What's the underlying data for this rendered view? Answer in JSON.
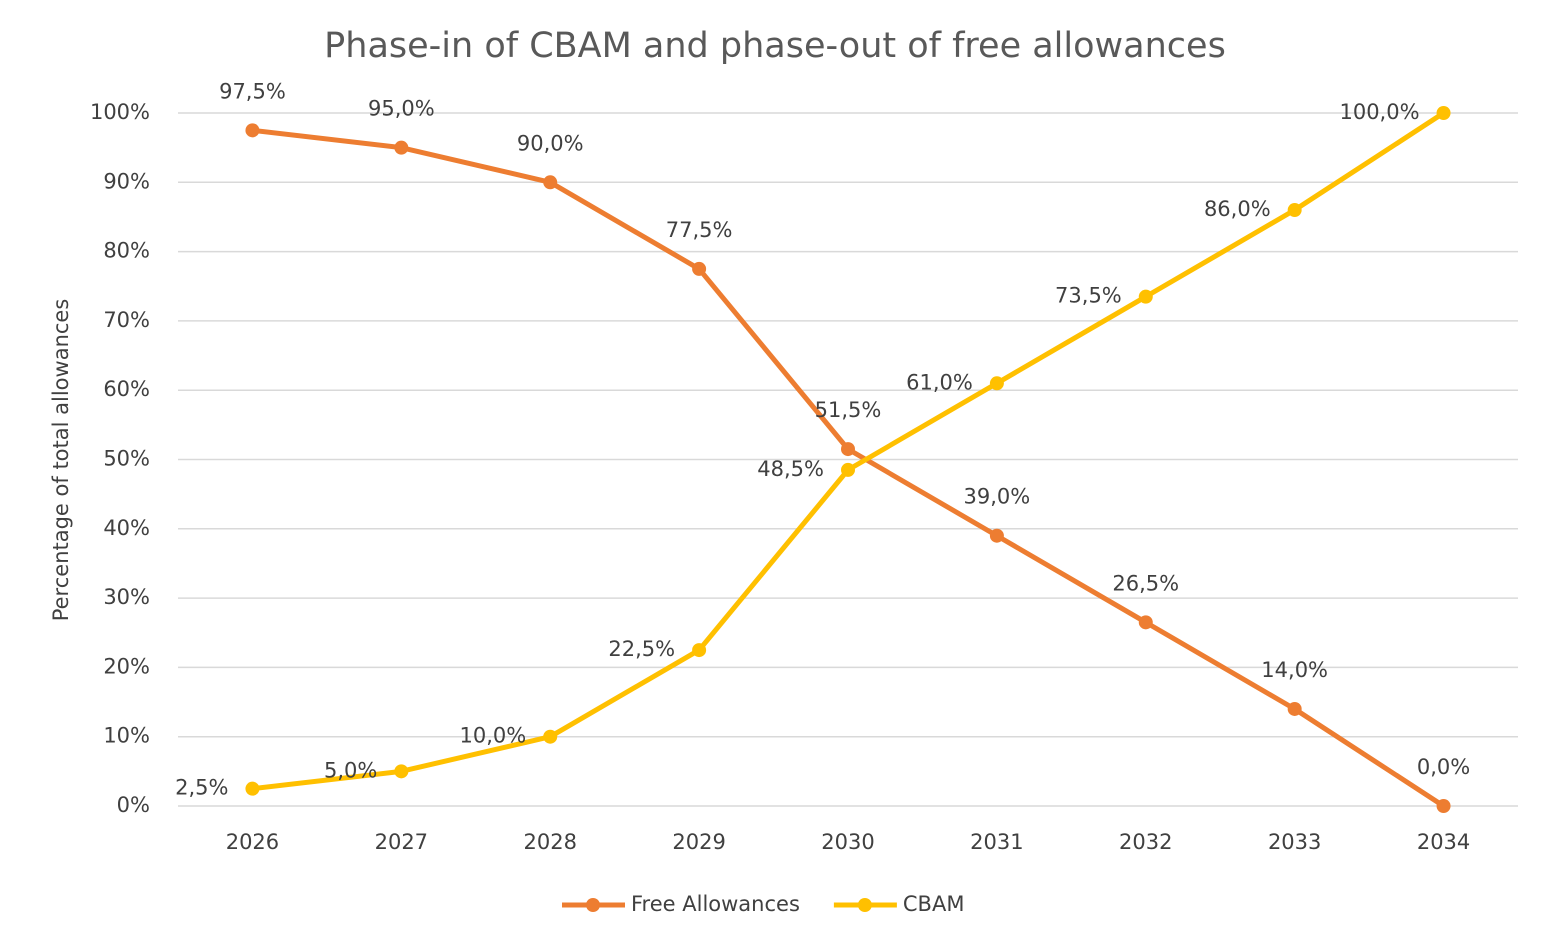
{
  "chart_data": {
    "type": "line",
    "title": "Phase-in of CBAM and phase-out of free allowances",
    "y_label": "Percentage of total allowances",
    "categories": [
      "2026",
      "2027",
      "2028",
      "2029",
      "2030",
      "2031",
      "2032",
      "2033",
      "2034"
    ],
    "series": [
      {
        "name": "Free Allowances",
        "color": "#ed7d31",
        "values": [
          97.5,
          95,
          90,
          77.5,
          51.5,
          39,
          26.5,
          14,
          0
        ],
        "value_labels": [
          "97,5%",
          "95,0%",
          "90,0%",
          "77,5%",
          "51,5%",
          "39,0%",
          "26,5%",
          "14,0%",
          "0,0%"
        ]
      },
      {
        "name": "CBAM",
        "color": "#ffc000",
        "values": [
          2.5,
          5,
          10,
          22.5,
          48.5,
          61,
          73.5,
          86,
          100
        ],
        "value_labels": [
          "2,5%",
          "5,0%",
          "10,0%",
          "22,5%",
          "48,5%",
          "61,0%",
          "73,5%",
          "86,0%",
          "100,0%"
        ]
      }
    ],
    "ylim": [
      0,
      100
    ],
    "yticks": [
      {
        "value": 0,
        "label": "0%"
      },
      {
        "value": 10,
        "label": "10%"
      },
      {
        "value": 20,
        "label": "20%"
      },
      {
        "value": 30,
        "label": "30%"
      },
      {
        "value": 40,
        "label": "40%"
      },
      {
        "value": 50,
        "label": "50%"
      },
      {
        "value": 60,
        "label": "60%"
      },
      {
        "value": 70,
        "label": "70%"
      },
      {
        "value": 80,
        "label": "80%"
      },
      {
        "value": 90,
        "label": "90%"
      },
      {
        "value": 100,
        "label": "100%"
      }
    ],
    "grid": true,
    "legend": "bottom"
  }
}
